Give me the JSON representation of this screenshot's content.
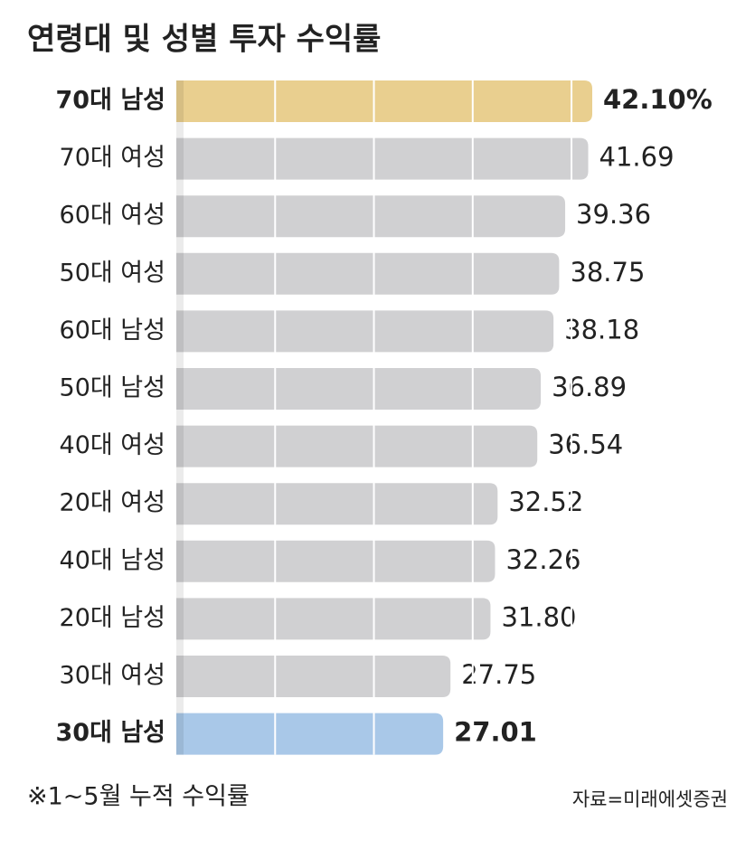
{
  "chart_data": {
    "type": "hbar",
    "title": "연령대 및 성별 투자 수익률",
    "categories": [
      "70대 남성",
      "70대 여성",
      "60대 여성",
      "50대 여성",
      "60대 남성",
      "50대 남성",
      "40대 여성",
      "20대 여성",
      "40대 남성",
      "20대 남성",
      "30대 여성",
      "30대 남성"
    ],
    "values": [
      42.1,
      41.69,
      39.36,
      38.75,
      38.18,
      36.89,
      36.54,
      32.52,
      32.26,
      31.8,
      27.75,
      27.01
    ],
    "value_labels": [
      "42.10%",
      "41.69",
      "39.36",
      "38.75",
      "38.18",
      "36.89",
      "36.54",
      "32.52",
      "32.26",
      "31.80",
      "27.75",
      "27.01"
    ],
    "color": "#d0d0d2",
    "bar_colors": [
      "#e9cf8f",
      "#d0d0d2",
      "#d0d0d2",
      "#d0d0d2",
      "#d0d0d2",
      "#d0d0d2",
      "#d0d0d2",
      "#d0d0d2",
      "#d0d0d2",
      "#d0d0d2",
      "#d0d0d2",
      "#a9c8e8"
    ],
    "xticks": [
      10,
      20,
      30,
      40
    ],
    "grid": true,
    "note": "※1~5월 누적 수익률",
    "source": "자료=미래에셋증권"
  }
}
